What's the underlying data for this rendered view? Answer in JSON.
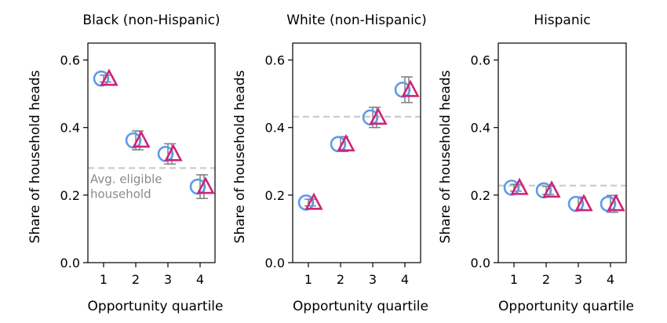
{
  "chart_data": [
    {
      "type": "scatter",
      "title": "Black (non-Hispanic)",
      "xlabel": "Opportunity quartile",
      "ylabel": "Share of household heads",
      "x_ticks": [
        "1",
        "2",
        "3",
        "4"
      ],
      "y_ticks": [
        "0.0",
        "0.2",
        "0.4",
        "0.6"
      ],
      "ylim": [
        0,
        0.65
      ],
      "avg_eligible": 0.28,
      "annotation": [
        "Avg. eligible",
        "household"
      ],
      "series": [
        {
          "name": "circle",
          "color": "#5b9bea",
          "x": [
            1,
            2,
            3,
            4
          ],
          "y": [
            0.545,
            0.362,
            0.322,
            0.225
          ],
          "err": [
            0.01,
            0.028,
            0.03,
            0.035
          ]
        },
        {
          "name": "triangle",
          "color": "#d0237a",
          "x": [
            1,
            2,
            3,
            4
          ],
          "y": [
            0.545,
            0.362,
            0.322,
            0.225
          ],
          "err": [
            0.01,
            0.028,
            0.03,
            0.035
          ]
        }
      ]
    },
    {
      "type": "scatter",
      "title": "White (non-Hispanic)",
      "xlabel": "Opportunity quartile",
      "ylabel": "Share of household heads",
      "x_ticks": [
        "1",
        "2",
        "3",
        "4"
      ],
      "y_ticks": [
        "0.0",
        "0.2",
        "0.4",
        "0.6"
      ],
      "ylim": [
        0,
        0.65
      ],
      "avg_eligible": 0.432,
      "series": [
        {
          "name": "circle",
          "color": "#5b9bea",
          "x": [
            1,
            2,
            3,
            4
          ],
          "y": [
            0.178,
            0.351,
            0.43,
            0.512
          ],
          "err": [
            0.01,
            0.022,
            0.03,
            0.038
          ]
        },
        {
          "name": "triangle",
          "color": "#d0237a",
          "x": [
            1,
            2,
            3,
            4
          ],
          "y": [
            0.178,
            0.351,
            0.43,
            0.512
          ],
          "err": [
            0.01,
            0.022,
            0.03,
            0.038
          ]
        }
      ]
    },
    {
      "type": "scatter",
      "title": "Hispanic",
      "xlabel": "Opportunity quartile",
      "ylabel": "Share of household heads",
      "x_ticks": [
        "1",
        "2",
        "3",
        "4"
      ],
      "y_ticks": [
        "0.0",
        "0.2",
        "0.4",
        "0.6"
      ],
      "ylim": [
        0,
        0.65
      ],
      "avg_eligible": 0.228,
      "series": [
        {
          "name": "circle",
          "color": "#5b9bea",
          "x": [
            1,
            2,
            3,
            4
          ],
          "y": [
            0.222,
            0.214,
            0.174,
            0.174
          ],
          "err": [
            0.01,
            0.012,
            0.02,
            0.025
          ]
        },
        {
          "name": "triangle",
          "color": "#d0237a",
          "x": [
            1,
            2,
            3,
            4
          ],
          "y": [
            0.222,
            0.214,
            0.174,
            0.174
          ],
          "err": [
            0.01,
            0.012,
            0.02,
            0.025
          ]
        }
      ]
    }
  ]
}
